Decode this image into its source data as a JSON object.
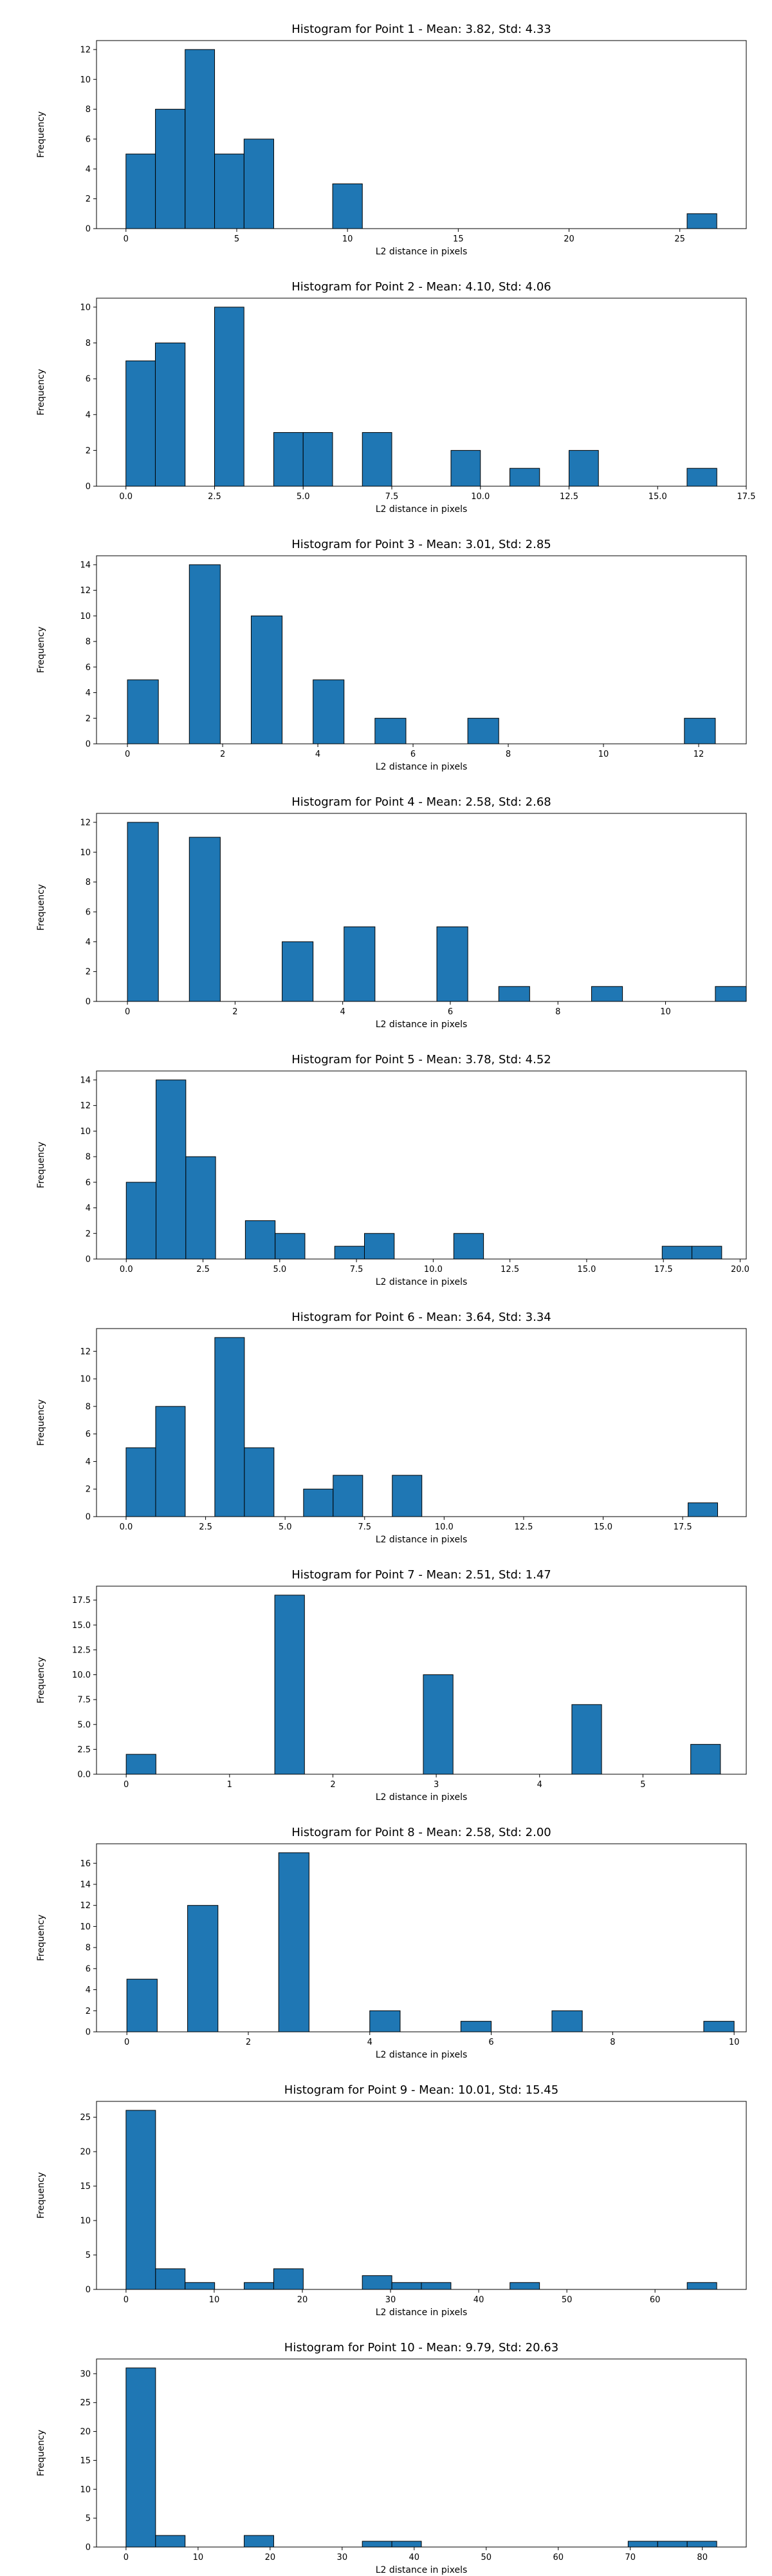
{
  "colors": {
    "bar_fill": "#1f77b4",
    "bar_edge": "#000000",
    "axis": "#000000",
    "background": "#ffffff"
  },
  "chart_data": [
    {
      "type": "bar",
      "title": "Histogram for Point 1 - Mean: 3.82, Std: 4.33",
      "xlabel": "L2 distance in pixels",
      "ylabel": "Frequency",
      "bin_edges": [
        0,
        1.33,
        2.67,
        4.0,
        5.33,
        6.67,
        8.0,
        9.33,
        10.67,
        12.0,
        13.33,
        14.67,
        16.0,
        17.33,
        18.67,
        20.0,
        21.33,
        22.67,
        24.0,
        25.33,
        26.67
      ],
      "values": [
        5,
        8,
        12,
        5,
        6,
        0,
        0,
        3,
        0,
        0,
        0,
        0,
        0,
        0,
        0,
        0,
        0,
        0,
        0,
        1
      ],
      "xlim": [
        -1.33,
        28.0
      ],
      "ylim": [
        0,
        12.6
      ],
      "xticks": [
        0,
        5,
        10,
        15,
        20,
        25
      ],
      "xtick_labels": [
        "0",
        "5",
        "10",
        "15",
        "20",
        "25"
      ],
      "yticks": [
        0,
        2,
        4,
        6,
        8,
        10,
        12
      ],
      "ytick_labels": [
        "0",
        "2",
        "4",
        "6",
        "8",
        "10",
        "12"
      ],
      "grid": false,
      "legend": "none"
    },
    {
      "type": "bar",
      "title": "Histogram for Point 2 - Mean: 4.10, Std: 4.06",
      "xlabel": "L2 distance in pixels",
      "ylabel": "Frequency",
      "bin_edges": [
        0,
        0.83,
        1.67,
        2.5,
        3.33,
        4.17,
        5.0,
        5.83,
        6.67,
        7.5,
        8.33,
        9.17,
        10.0,
        10.83,
        11.67,
        12.5,
        13.33,
        14.17,
        15.0,
        15.83,
        16.67
      ],
      "values": [
        7,
        8,
        0,
        10,
        0,
        3,
        3,
        0,
        3,
        0,
        0,
        2,
        0,
        1,
        0,
        2,
        0,
        0,
        0,
        1
      ],
      "xlim": [
        -0.83,
        17.5
      ],
      "ylim": [
        0,
        10.5
      ],
      "xticks": [
        0,
        2.5,
        5,
        7.5,
        10,
        12.5,
        15,
        17.5
      ],
      "xtick_labels": [
        "0.0",
        "2.5",
        "5.0",
        "7.5",
        "10.0",
        "12.5",
        "15.0",
        "17.5"
      ],
      "yticks": [
        0,
        2,
        4,
        6,
        8,
        10
      ],
      "ytick_labels": [
        "0",
        "2",
        "4",
        "6",
        "8",
        "10"
      ],
      "grid": false,
      "legend": "none"
    },
    {
      "type": "bar",
      "title": "Histogram for Point 3 - Mean: 3.01, Std: 2.85",
      "xlabel": "L2 distance in pixels",
      "ylabel": "Frequency",
      "bin_edges": [
        0,
        0.65,
        1.3,
        1.95,
        2.6,
        3.25,
        3.9,
        4.55,
        5.2,
        5.85,
        6.5,
        7.15,
        7.8,
        8.45,
        9.1,
        9.75,
        10.4,
        11.05,
        11.7,
        12.35,
        13.0
      ],
      "values": [
        5,
        0,
        14,
        0,
        10,
        0,
        5,
        0,
        2,
        0,
        0,
        2,
        0,
        0,
        0,
        0,
        0,
        0,
        2,
        0
      ],
      "xlim": [
        -0.65,
        13.0
      ],
      "ylim": [
        0,
        14.7
      ],
      "xticks": [
        0,
        2,
        4,
        6,
        8,
        10,
        12
      ],
      "xtick_labels": [
        "0",
        "2",
        "4",
        "6",
        "8",
        "10",
        "12"
      ],
      "yticks": [
        0,
        2,
        4,
        6,
        8,
        10,
        12,
        14
      ],
      "ytick_labels": [
        "0",
        "2",
        "4",
        "6",
        "8",
        "10",
        "12",
        "14"
      ],
      "grid": false,
      "legend": "none"
    },
    {
      "type": "bar",
      "title": "Histogram for Point 4 - Mean: 2.58, Std: 2.68",
      "xlabel": "L2 distance in pixels",
      "ylabel": "Frequency",
      "bin_edges": [
        0,
        0.575,
        1.15,
        1.725,
        2.3,
        2.875,
        3.45,
        4.025,
        4.6,
        5.175,
        5.75,
        6.325,
        6.9,
        7.475,
        8.05,
        8.625,
        9.2,
        9.775,
        10.35,
        10.925,
        11.5
      ],
      "values": [
        12,
        0,
        11,
        0,
        0,
        4,
        0,
        5,
        0,
        0,
        5,
        0,
        1,
        0,
        0,
        1,
        0,
        0,
        0,
        1
      ],
      "xlim": [
        -0.575,
        11.5
      ],
      "ylim": [
        0,
        12.6
      ],
      "xticks": [
        0,
        2,
        4,
        6,
        8,
        10
      ],
      "xtick_labels": [
        "0",
        "2",
        "4",
        "6",
        "8",
        "10"
      ],
      "yticks": [
        0,
        2,
        4,
        6,
        8,
        10,
        12
      ],
      "ytick_labels": [
        "0",
        "2",
        "4",
        "6",
        "8",
        "10",
        "12"
      ],
      "grid": false,
      "legend": "none"
    },
    {
      "type": "bar",
      "title": "Histogram for Point 5 - Mean: 3.78, Std: 4.52",
      "xlabel": "L2 distance in pixels",
      "ylabel": "Frequency",
      "bin_edges": [
        0,
        0.97,
        1.94,
        2.91,
        3.88,
        4.85,
        5.82,
        6.79,
        7.76,
        8.73,
        9.7,
        10.67,
        11.64,
        12.61,
        13.58,
        14.55,
        15.52,
        16.49,
        17.46,
        18.43,
        19.4
      ],
      "values": [
        6,
        14,
        8,
        0,
        3,
        2,
        0,
        1,
        2,
        0,
        0,
        2,
        0,
        0,
        0,
        0,
        0,
        0,
        1,
        1
      ],
      "xlim": [
        -0.97,
        20.2
      ],
      "ylim": [
        0,
        14.7
      ],
      "xticks": [
        0,
        2.5,
        5,
        7.5,
        10,
        12.5,
        15,
        17.5,
        20
      ],
      "xtick_labels": [
        "0.0",
        "2.5",
        "5.0",
        "7.5",
        "10.0",
        "12.5",
        "15.0",
        "17.5",
        "20.0"
      ],
      "yticks": [
        0,
        2,
        4,
        6,
        8,
        10,
        12,
        14
      ],
      "ytick_labels": [
        "0",
        "2",
        "4",
        "6",
        "8",
        "10",
        "12",
        "14"
      ],
      "grid": false,
      "legend": "none"
    },
    {
      "type": "bar",
      "title": "Histogram for Point 6 - Mean: 3.64, Std: 3.34",
      "xlabel": "L2 distance in pixels",
      "ylabel": "Frequency",
      "bin_edges": [
        0,
        0.93,
        1.86,
        2.79,
        3.72,
        4.65,
        5.58,
        6.51,
        7.44,
        8.37,
        9.3,
        10.23,
        11.16,
        12.09,
        13.02,
        13.95,
        14.88,
        15.81,
        16.74,
        17.67,
        18.6
      ],
      "values": [
        5,
        8,
        0,
        13,
        5,
        0,
        2,
        3,
        0,
        3,
        0,
        0,
        0,
        0,
        0,
        0,
        0,
        0,
        0,
        1
      ],
      "xlim": [
        -0.93,
        19.5
      ],
      "ylim": [
        0,
        13.65
      ],
      "xticks": [
        0,
        2.5,
        5,
        7.5,
        10,
        12.5,
        15,
        17.5
      ],
      "xtick_labels": [
        "0.0",
        "2.5",
        "5.0",
        "7.5",
        "10.0",
        "12.5",
        "15.0",
        "17.5"
      ],
      "yticks": [
        0,
        2,
        4,
        6,
        8,
        10,
        12
      ],
      "ytick_labels": [
        "0",
        "2",
        "4",
        "6",
        "8",
        "10",
        "12"
      ],
      "grid": false,
      "legend": "none"
    },
    {
      "type": "bar",
      "title": "Histogram for Point 7 - Mean: 2.51, Std: 1.47",
      "xlabel": "L2 distance in pixels",
      "ylabel": "Frequency",
      "bin_edges": [
        0,
        0.2875,
        0.575,
        0.8625,
        1.15,
        1.4375,
        1.725,
        2.0125,
        2.3,
        2.5875,
        2.875,
        3.1625,
        3.45,
        3.7375,
        4.025,
        4.3125,
        4.6,
        4.8875,
        5.175,
        5.4625,
        5.75
      ],
      "values": [
        2,
        0,
        0,
        0,
        0,
        18,
        0,
        0,
        0,
        0,
        10,
        0,
        0,
        0,
        0,
        7,
        0,
        0,
        0,
        3
      ],
      "xlim": [
        -0.2875,
        6.0
      ],
      "ylim": [
        0,
        18.9
      ],
      "xticks": [
        0,
        1,
        2,
        3,
        4,
        5
      ],
      "xtick_labels": [
        "0",
        "1",
        "2",
        "3",
        "4",
        "5"
      ],
      "yticks": [
        0,
        2.5,
        5,
        7.5,
        10,
        12.5,
        15,
        17.5
      ],
      "ytick_labels": [
        "0.0",
        "2.5",
        "5.0",
        "7.5",
        "10.0",
        "12.5",
        "15.0",
        "17.5"
      ],
      "grid": false,
      "legend": "none"
    },
    {
      "type": "bar",
      "title": "Histogram for Point 8 - Mean: 2.58, Std: 2.00",
      "xlabel": "L2 distance in pixels",
      "ylabel": "Frequency",
      "bin_edges": [
        0,
        0.5,
        1.0,
        1.5,
        2.0,
        2.5,
        3.0,
        3.5,
        4.0,
        4.5,
        5.0,
        5.5,
        6.0,
        6.5,
        7.0,
        7.5,
        8.0,
        8.5,
        9.0,
        9.5,
        10.0
      ],
      "values": [
        5,
        0,
        12,
        0,
        0,
        17,
        0,
        0,
        2,
        0,
        0,
        1,
        0,
        0,
        2,
        0,
        0,
        0,
        0,
        1
      ],
      "xlim": [
        -0.5,
        10.2
      ],
      "ylim": [
        0,
        17.85
      ],
      "xticks": [
        0,
        2,
        4,
        6,
        8,
        10
      ],
      "xtick_labels": [
        "0",
        "2",
        "4",
        "6",
        "8",
        "10"
      ],
      "yticks": [
        0,
        2,
        4,
        6,
        8,
        10,
        12,
        14,
        16
      ],
      "ytick_labels": [
        "0",
        "2",
        "4",
        "6",
        "8",
        "10",
        "12",
        "14",
        "16"
      ],
      "grid": false,
      "legend": "none"
    },
    {
      "type": "bar",
      "title": "Histogram for Point 9 - Mean: 10.01, Std: 15.45",
      "xlabel": "L2 distance in pixels",
      "ylabel": "Frequency",
      "bin_edges": [
        0,
        3.35,
        6.7,
        10.05,
        13.4,
        16.75,
        20.1,
        23.45,
        26.8,
        30.15,
        33.5,
        36.85,
        40.2,
        43.55,
        46.9,
        50.25,
        53.6,
        56.95,
        60.3,
        63.65,
        67.0
      ],
      "values": [
        26,
        3,
        1,
        0,
        1,
        3,
        0,
        0,
        2,
        1,
        1,
        0,
        0,
        1,
        0,
        0,
        0,
        0,
        0,
        1
      ],
      "xlim": [
        -3.35,
        70.35
      ],
      "ylim": [
        0,
        27.3
      ],
      "xticks": [
        0,
        10,
        20,
        30,
        40,
        50,
        60
      ],
      "xtick_labels": [
        "0",
        "10",
        "20",
        "30",
        "40",
        "50",
        "60"
      ],
      "yticks": [
        0,
        5,
        10,
        15,
        20,
        25
      ],
      "ytick_labels": [
        "0",
        "5",
        "10",
        "15",
        "20",
        "25"
      ],
      "grid": false,
      "legend": "none"
    },
    {
      "type": "bar",
      "title": "Histogram for Point 10 - Mean: 9.79, Std: 20.63",
      "xlabel": "L2 distance in pixels",
      "ylabel": "Frequency",
      "bin_edges": [
        0,
        4.1,
        8.2,
        12.3,
        16.4,
        20.5,
        24.6,
        28.7,
        32.8,
        36.9,
        41.0,
        45.1,
        49.2,
        53.3,
        57.4,
        61.5,
        65.6,
        69.7,
        73.8,
        77.9,
        82.0
      ],
      "values": [
        31,
        2,
        0,
        0,
        2,
        0,
        0,
        0,
        1,
        1,
        0,
        0,
        0,
        0,
        0,
        0,
        0,
        1,
        1,
        1
      ],
      "xlim": [
        -4.1,
        86.1
      ],
      "ylim": [
        0,
        32.55
      ],
      "xticks": [
        0,
        10,
        20,
        30,
        40,
        50,
        60,
        70,
        80
      ],
      "xtick_labels": [
        "0",
        "10",
        "20",
        "30",
        "40",
        "50",
        "60",
        "70",
        "80"
      ],
      "yticks": [
        0,
        5,
        10,
        15,
        20,
        25,
        30
      ],
      "ytick_labels": [
        "0",
        "5",
        "10",
        "15",
        "20",
        "25",
        "30"
      ],
      "grid": false,
      "legend": "none"
    }
  ]
}
